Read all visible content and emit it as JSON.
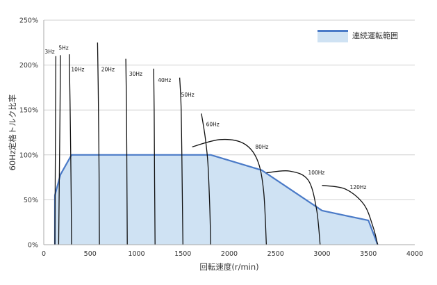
{
  "chart_data": {
    "type": "area",
    "title": "",
    "xlabel": "回転速度(r/min)",
    "ylabel": "60Hz定格トルク比率",
    "xlim": [
      0,
      4000
    ],
    "ylim": [
      0,
      250
    ],
    "x_ticks": [
      0,
      500,
      1000,
      1500,
      2000,
      2500,
      3000,
      3500,
      4000
    ],
    "y_ticks": [
      0,
      50,
      100,
      150,
      200,
      250
    ],
    "y_tick_labels": [
      "0%",
      "50%",
      "100%",
      "150%",
      "200%",
      "250%"
    ],
    "grid": true,
    "legend": {
      "position": "top-right",
      "entries": [
        "連続運転範囲"
      ]
    },
    "series": [
      {
        "name": "連続運転範囲",
        "fill": "#cfe2f3",
        "stroke": "#4a7ac7",
        "points": [
          [
            120,
            0
          ],
          [
            120,
            55
          ],
          [
            180,
            78
          ],
          [
            300,
            100
          ],
          [
            1800,
            100
          ],
          [
            2350,
            83
          ],
          [
            3000,
            38
          ],
          [
            3500,
            27
          ],
          [
            3600,
            0
          ]
        ]
      }
    ],
    "frequency_curves": [
      {
        "label": "3Hz",
        "points": [
          [
            130,
            210
          ],
          [
            127,
            150
          ],
          [
            123,
            60
          ],
          [
            120,
            0
          ]
        ],
        "label_x": 10,
        "label_y": 213
      },
      {
        "label": "5Hz",
        "points": [
          [
            180,
            211
          ],
          [
            175,
            150
          ],
          [
            166,
            60
          ],
          [
            160,
            0
          ]
        ],
        "label_x": 160,
        "label_y": 217
      },
      {
        "label": "10Hz",
        "points": [
          [
            275,
            212
          ],
          [
            283,
            160
          ],
          [
            293,
            80
          ],
          [
            300,
            0
          ]
        ],
        "label_x": 295,
        "label_y": 193
      },
      {
        "label": "20Hz",
        "points": [
          [
            580,
            225
          ],
          [
            589,
            160
          ],
          [
            596,
            80
          ],
          [
            600,
            0
          ]
        ],
        "label_x": 620,
        "label_y": 193
      },
      {
        "label": "30Hz",
        "points": [
          [
            885,
            207
          ],
          [
            892,
            150
          ],
          [
            897,
            70
          ],
          [
            900,
            0
          ]
        ],
        "label_x": 920,
        "label_y": 188
      },
      {
        "label": "40Hz",
        "points": [
          [
            1185,
            196
          ],
          [
            1190,
            150
          ],
          [
            1195,
            70
          ],
          [
            1200,
            0
          ]
        ],
        "label_x": 1230,
        "label_y": 181
      },
      {
        "label": "50Hz",
        "points": [
          [
            1465,
            186
          ],
          [
            1482,
            150
          ],
          [
            1492,
            70
          ],
          [
            1500,
            0
          ]
        ],
        "label_x": 1480,
        "label_y": 165
      },
      {
        "label": "60Hz",
        "points": [
          [
            1700,
            146
          ],
          [
            1740,
            120
          ],
          [
            1770,
            90
          ],
          [
            1790,
            40
          ],
          [
            1800,
            0
          ]
        ],
        "label_x": 1750,
        "label_y": 132
      },
      {
        "label": "80Hz",
        "points": [
          [
            1600,
            109
          ],
          [
            1900,
            117
          ],
          [
            2150,
            113
          ],
          [
            2300,
            95
          ],
          [
            2370,
            60
          ],
          [
            2400,
            0
          ]
        ],
        "label_x": 2280,
        "label_y": 107
      },
      {
        "label": "100Hz",
        "points": [
          [
            2400,
            80
          ],
          [
            2650,
            82
          ],
          [
            2850,
            72
          ],
          [
            2940,
            40
          ],
          [
            2980,
            0
          ]
        ],
        "label_x": 2850,
        "label_y": 78
      },
      {
        "label": "120Hz",
        "points": [
          [
            3000,
            66
          ],
          [
            3250,
            62
          ],
          [
            3450,
            45
          ],
          [
            3550,
            20
          ],
          [
            3600,
            0
          ]
        ],
        "label_x": 3300,
        "label_y": 62
      }
    ]
  }
}
